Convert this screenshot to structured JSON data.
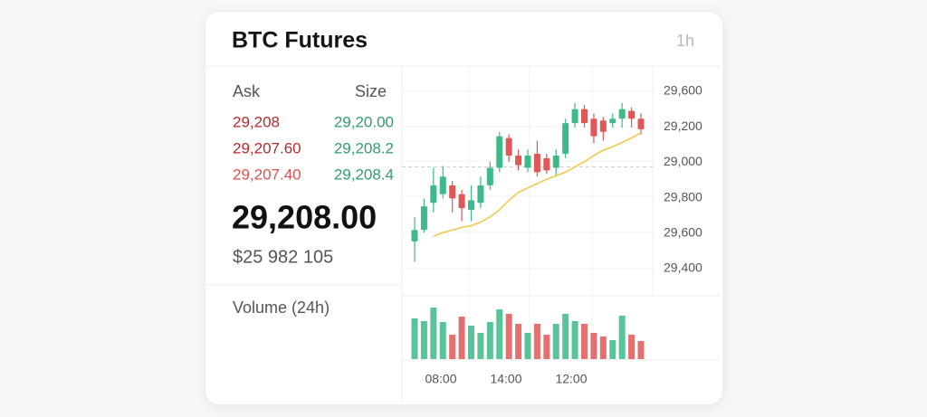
{
  "header": {
    "title": "BTC Futures",
    "interval": "1h"
  },
  "order_book": {
    "columns": [
      "Ask",
      "Size"
    ],
    "rows": [
      [
        "29,208",
        "29,20.00"
      ],
      [
        "29,207.60",
        "29,208.2"
      ],
      [
        "29,207.40",
        "29,208.4"
      ]
    ]
  },
  "last_price": "29,208.00",
  "volume_usd": "$25 982 105",
  "volume_label": "Volume (24h)",
  "chart_data": {
    "type": "candlestick",
    "ylim": [
      29370,
      29625
    ],
    "axis_labels": [
      "29,600",
      "29,200",
      "29,000",
      "29,800",
      "29,600",
      "29,400"
    ],
    "time_labels": [
      "08:00",
      "14:00",
      "12:00"
    ],
    "up_color": "#3dba87",
    "down_color": "#e05757",
    "candles": {
      "open": [
        29430,
        29443,
        29474,
        29484,
        29494,
        29484,
        29466,
        29474,
        29494,
        29514,
        29548,
        29528,
        29514,
        29530,
        29525,
        29514,
        29530,
        29565,
        29581,
        29570,
        29568,
        29565,
        29570,
        29579,
        29570
      ],
      "high": [
        29458,
        29479,
        29514,
        29516,
        29499,
        29489,
        29494,
        29504,
        29521,
        29555,
        29552,
        29535,
        29535,
        29545,
        29530,
        29535,
        29570,
        29588,
        29586,
        29576,
        29572,
        29576,
        29588,
        29583,
        29576
      ],
      "low": [
        29407,
        29440,
        29463,
        29479,
        29463,
        29453,
        29453,
        29468,
        29489,
        29509,
        29521,
        29511,
        29509,
        29504,
        29507,
        29504,
        29525,
        29560,
        29560,
        29542,
        29545,
        29560,
        29560,
        29560,
        29552
      ],
      "close": [
        29443,
        29470,
        29494,
        29504,
        29479,
        29468,
        29477,
        29494,
        29514,
        29550,
        29528,
        29517,
        29528,
        29509,
        29511,
        29528,
        29565,
        29581,
        29565,
        29550,
        29555,
        29570,
        29581,
        29570,
        29558
      ]
    },
    "moving_average": {
      "color": "#f2c94c",
      "values": [
        null,
        null,
        29436,
        29440,
        29443,
        29446,
        29448,
        29452,
        29458,
        29466,
        29477,
        29486,
        29491,
        29496,
        29501,
        29505,
        29509,
        29515,
        29521,
        29528,
        29534,
        29538,
        29543,
        29548,
        29554
      ]
    },
    "reference_price": 29515,
    "volume": {
      "vlim": [
        0,
        70
      ],
      "values": [
        45,
        42,
        57,
        41,
        27,
        47,
        37,
        29,
        41,
        55,
        50,
        39,
        29,
        39,
        27,
        39,
        50,
        42,
        39,
        29,
        25,
        21,
        48,
        27,
        20
      ]
    }
  }
}
